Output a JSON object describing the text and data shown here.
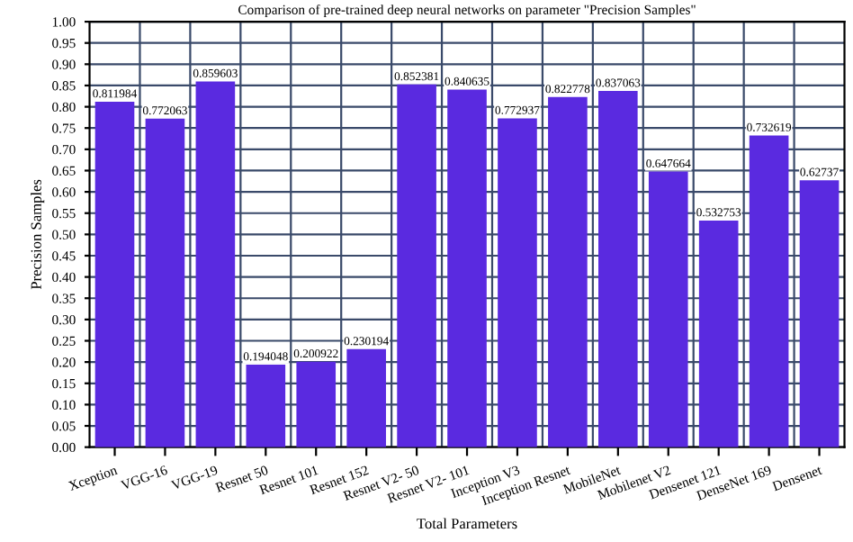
{
  "chart_data": {
    "type": "bar",
    "title": "Comparison of pre-trained deep neural networks on parameter \"Precision Samples\"",
    "xlabel": "Total Parameters",
    "ylabel": "Precision Samples",
    "categories": [
      "Xception",
      "VGG-16",
      "VGG-19",
      "Resnet 50",
      "Resnet 101",
      "Resnet 152",
      "Resnet V2- 50",
      "Resnet V2- 101",
      "Inception V3",
      "Inception Resnet",
      "MobileNet",
      "Mobilenet V2",
      "Densenet 121",
      "DenseNet 169",
      "Densenet"
    ],
    "values": [
      0.811984,
      0.772063,
      0.859603,
      0.194048,
      0.200922,
      0.230194,
      0.852381,
      0.840635,
      0.772937,
      0.822778,
      0.837063,
      0.647664,
      0.532753,
      0.732619,
      0.62737
    ],
    "color": "#5a2ae0",
    "data_labels": true,
    "ylim": [
      0,
      1
    ],
    "yticks": [
      {
        "value": 0,
        "label": "0.00"
      },
      {
        "value": 0.05,
        "label": "0.05"
      },
      {
        "value": 0.1,
        "label": "0.10"
      },
      {
        "value": 0.15,
        "label": "0.15"
      },
      {
        "value": 0.2,
        "label": "0.20"
      },
      {
        "value": 0.25,
        "label": "0.25"
      },
      {
        "value": 0.3,
        "label": "0.30"
      },
      {
        "value": 0.35,
        "label": "0.35"
      },
      {
        "value": 0.4,
        "label": "0.40"
      },
      {
        "value": 0.45,
        "label": "0.45"
      },
      {
        "value": 0.5,
        "label": "0.50"
      },
      {
        "value": 0.55,
        "label": "0.55"
      },
      {
        "value": 0.6,
        "label": "0.60"
      },
      {
        "value": 0.65,
        "label": "0.65"
      },
      {
        "value": 0.7,
        "label": "0.70"
      },
      {
        "value": 0.75,
        "label": "0.75"
      },
      {
        "value": 0.8,
        "label": "0.80"
      },
      {
        "value": 0.85,
        "label": "0.85"
      },
      {
        "value": 0.9,
        "label": "0.90"
      },
      {
        "value": 0.95,
        "label": "0.95"
      },
      {
        "value": 1,
        "label": "1.00"
      }
    ],
    "grid": true
  }
}
